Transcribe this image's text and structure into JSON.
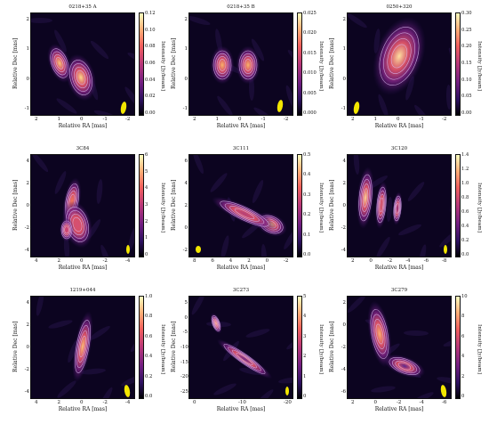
{
  "panels": [
    {
      "title": "0218+35 A",
      "xticks": [
        "2",
        "1",
        "0",
        "-1",
        "-2"
      ],
      "yticks": [
        "2",
        "1",
        "0",
        "-1"
      ],
      "cticks": [
        "0.12",
        "0.10",
        "0.08",
        "0.06",
        "0.04",
        "0.02",
        "0.00"
      ]
    },
    {
      "title": "0218+35 B",
      "xticks": [
        "2",
        "1",
        "0",
        "-1",
        "-2"
      ],
      "yticks": [
        "2",
        "1",
        "0",
        "-1"
      ],
      "cticks": [
        "0.025",
        "0.020",
        "0.015",
        "0.010",
        "0.005",
        "0.000"
      ]
    },
    {
      "title": "0250+320",
      "xticks": [
        "2",
        "1",
        "0",
        "-1",
        "-2"
      ],
      "yticks": [
        "2",
        "1",
        "0",
        "-1"
      ],
      "cticks": [
        "0.30",
        "0.25",
        "0.20",
        "0.15",
        "0.10",
        "0.05",
        "0.00"
      ]
    },
    {
      "title": "3C84",
      "xticks": [
        "4",
        "2",
        "0",
        "-2",
        "-4"
      ],
      "yticks": [
        "4",
        "2",
        "0",
        "-2",
        "-4"
      ],
      "cticks": [
        "6",
        "5",
        "4",
        "3",
        "2",
        "1",
        "0"
      ]
    },
    {
      "title": "3C111",
      "xticks": [
        "8",
        "6",
        "4",
        "2",
        "0",
        "-2"
      ],
      "yticks": [
        "6",
        "4",
        "2",
        "0",
        "-2"
      ],
      "cticks": [
        "0.5",
        "0.4",
        "0.3",
        "0.2",
        "0.1",
        "0.0"
      ]
    },
    {
      "title": "3C120",
      "xticks": [
        "2",
        "0",
        "-2",
        "-4",
        "-6",
        "-8"
      ],
      "yticks": [
        "4",
        "2",
        "0",
        "-2",
        "-4"
      ],
      "cticks": [
        "1.4",
        "1.2",
        "1.0",
        "0.8",
        "0.6",
        "0.4",
        "0.2",
        "0.0"
      ]
    },
    {
      "title": "1219+044",
      "xticks": [
        "4",
        "2",
        "0",
        "-2",
        "-4"
      ],
      "yticks": [
        "4",
        "2",
        "0",
        "-2",
        "-4"
      ],
      "cticks": [
        "1.0",
        "0.8",
        "0.6",
        "0.4",
        "0.2",
        "0.0"
      ]
    },
    {
      "title": "3C273",
      "xticks": [
        "0",
        "-10",
        "-20"
      ],
      "yticks": [
        "5",
        "0",
        "-5",
        "-10",
        "-15",
        "-20",
        "-25"
      ],
      "cticks": [
        "5",
        "4",
        "3",
        "2",
        "1",
        "0"
      ]
    },
    {
      "title": "3C279",
      "xticks": [
        "2",
        "0",
        "-2",
        "-4",
        "-6"
      ],
      "yticks": [
        "2",
        "0",
        "-2",
        "-4",
        "-6"
      ],
      "cticks": [
        "10",
        "8",
        "6",
        "4",
        "2",
        "0"
      ]
    }
  ],
  "axes": {
    "xlabel": "Relative RA [mas]",
    "ylabel": "Relative Dec [mas]",
    "clabel": "Intensity [Jy/beam]"
  },
  "colors": {
    "background": "#0c0420",
    "contour": "#d9b8f0",
    "beam": "#f3e600",
    "cmap_low": "#000004",
    "cmap_high": "#fcfdbf"
  }
}
